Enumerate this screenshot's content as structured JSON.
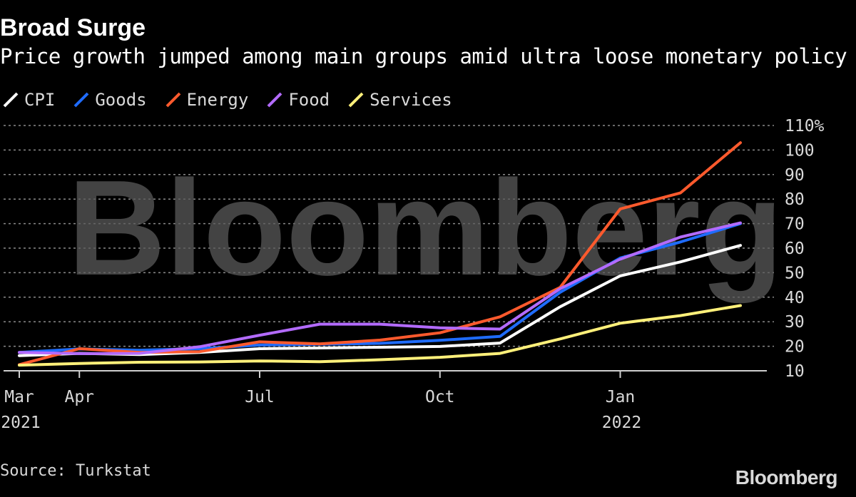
{
  "title": "Broad Surge",
  "subtitle": "Price growth jumped among main groups amid ultra loose monetary policy",
  "source": "Source: Turkstat",
  "brand": "Bloomberg",
  "watermark": "Bloomberg",
  "colors": {
    "background": "#000000",
    "CPI": "#ffffff",
    "Goods": "#1f6cff",
    "Energy": "#ff5a2d",
    "Food": "#b36bff",
    "Services": "#fff07a"
  },
  "chart_data": {
    "type": "line",
    "title": "Broad Surge",
    "xlabel": "",
    "ylabel": "",
    "ylim": [
      10,
      110
    ],
    "y_ticks": [
      {
        "value": 110,
        "label": "110%"
      },
      {
        "value": 100,
        "label": "100"
      },
      {
        "value": 90,
        "label": "90"
      },
      {
        "value": 80,
        "label": "80"
      },
      {
        "value": 70,
        "label": "70"
      },
      {
        "value": 60,
        "label": "60"
      },
      {
        "value": 50,
        "label": "50"
      },
      {
        "value": 40,
        "label": "40"
      },
      {
        "value": 30,
        "label": "30"
      },
      {
        "value": 20,
        "label": "20"
      },
      {
        "value": 10,
        "label": "10"
      }
    ],
    "x": [
      "2021-03",
      "2021-04",
      "2021-05",
      "2021-06",
      "2021-07",
      "2021-08",
      "2021-09",
      "2021-10",
      "2021-11",
      "2021-12",
      "2022-01",
      "2022-02",
      "2022-03"
    ],
    "x_ticks": [
      {
        "index": 0,
        "label": "Mar",
        "year": "2021"
      },
      {
        "index": 1,
        "label": "Apr",
        "year": ""
      },
      {
        "index": 4,
        "label": "Jul",
        "year": ""
      },
      {
        "index": 7,
        "label": "Oct",
        "year": ""
      },
      {
        "index": 10,
        "label": "Jan",
        "year": "2022"
      }
    ],
    "grid": true,
    "legend": "top-left",
    "series": [
      {
        "name": "CPI",
        "color": "#ffffff",
        "values": [
          16.2,
          17.1,
          16.6,
          17.5,
          19.0,
          19.3,
          19.6,
          19.9,
          21.3,
          36.1,
          48.7,
          54.4,
          61.1
        ]
      },
      {
        "name": "Goods",
        "color": "#1f6cff",
        "values": [
          17.5,
          18.9,
          18.4,
          19.0,
          20.5,
          20.8,
          21.2,
          22.4,
          24.0,
          42.0,
          56.0,
          62.5,
          70.0
        ]
      },
      {
        "name": "Energy",
        "color": "#ff5a2d",
        "values": [
          12.5,
          19.0,
          17.5,
          17.8,
          21.8,
          21.0,
          22.5,
          25.5,
          32.0,
          44.0,
          76.0,
          82.5,
          103.0
        ]
      },
      {
        "name": "Food",
        "color": "#b36bff",
        "values": [
          17.5,
          17.0,
          17.1,
          19.8,
          24.5,
          29.0,
          29.0,
          27.5,
          27.0,
          43.5,
          55.5,
          64.5,
          70.3
        ]
      },
      {
        "name": "Services",
        "color": "#fff07a",
        "values": [
          12.3,
          13.0,
          13.5,
          13.6,
          14.0,
          13.7,
          14.5,
          15.5,
          17.1,
          23.0,
          29.4,
          32.5,
          36.6
        ]
      }
    ]
  }
}
